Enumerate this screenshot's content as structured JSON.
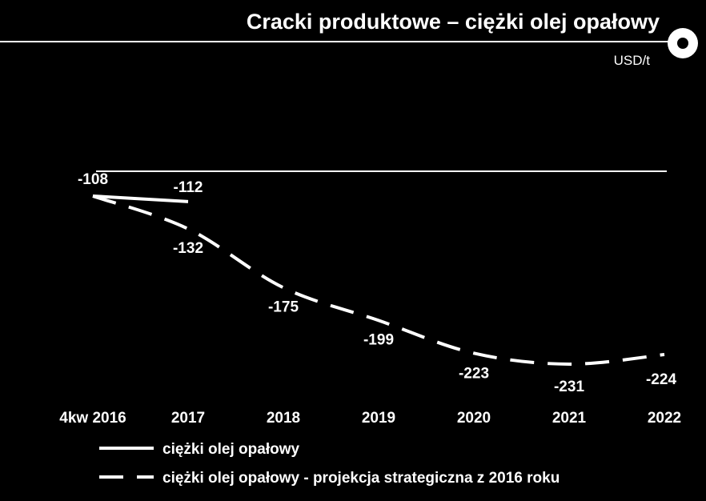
{
  "title": "Cracki produktowe – ciężki olej opałowy",
  "unit": "USD/t",
  "colors": {
    "background": "#000000",
    "foreground": "#ffffff"
  },
  "badge_icon": "ring-icon",
  "chart_data": {
    "type": "line",
    "title": "Cracki produktowe – ciężki olej opałowy",
    "ylabel": "USD/t",
    "xlabel": "",
    "categories": [
      "4kw 2016",
      "2017",
      "2018",
      "2019",
      "2020",
      "2021",
      "2022"
    ],
    "ylim": [
      -250,
      -90
    ],
    "grid": false,
    "legend_position": "bottom",
    "series": [
      {
        "name": "ciężki olej opałowy",
        "style": "solid",
        "values": [
          -108,
          -112,
          null,
          null,
          null,
          null,
          null
        ]
      },
      {
        "name": "ciężki olej opałowy - projekcja strategiczna z 2016 roku",
        "style": "dashed",
        "values": [
          -108,
          -132,
          -175,
          -199,
          -223,
          -231,
          -224
        ]
      }
    ],
    "data_labels": {
      "solid": [
        "-108",
        "-112"
      ],
      "dashed": [
        "-132",
        "-175",
        "-199",
        "-223",
        "-231",
        "-224"
      ]
    }
  }
}
